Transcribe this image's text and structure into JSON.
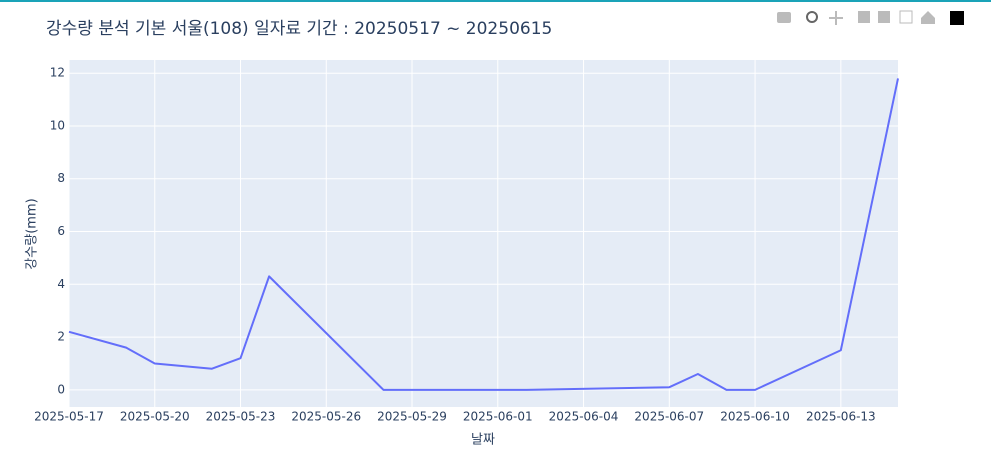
{
  "chart_data": {
    "type": "line",
    "title": "강수량 분석 기본 서울(108) 일자료 기간 : 20250517 ~ 20250615",
    "x_label": "날짜",
    "y_label": "강수량(mm)",
    "x": [
      "2025-05-17",
      "2025-05-19",
      "2025-05-20",
      "2025-05-22",
      "2025-05-23",
      "2025-05-24",
      "2025-05-28",
      "2025-06-02",
      "2025-06-07",
      "2025-06-08",
      "2025-06-09",
      "2025-06-10",
      "2025-06-13",
      "2025-06-15"
    ],
    "values": [
      2.2,
      1.6,
      1.0,
      0.8,
      1.2,
      4.3,
      0,
      0,
      0.1,
      0.6,
      0,
      0,
      1.5,
      11.8
    ],
    "color": "#636efa",
    "xlim": [
      "2025-05-17",
      "2025-06-15"
    ],
    "xticks": [
      "2025-05-17",
      "2025-05-20",
      "2025-05-23",
      "2025-05-26",
      "2025-05-29",
      "2025-06-01",
      "2025-06-04",
      "2025-06-07",
      "2025-06-10",
      "2025-06-13"
    ],
    "ylim": [
      -0.65,
      12.5
    ],
    "yticks": [
      0,
      2,
      4,
      6,
      8,
      10,
      12
    ],
    "grid": true
  }
}
